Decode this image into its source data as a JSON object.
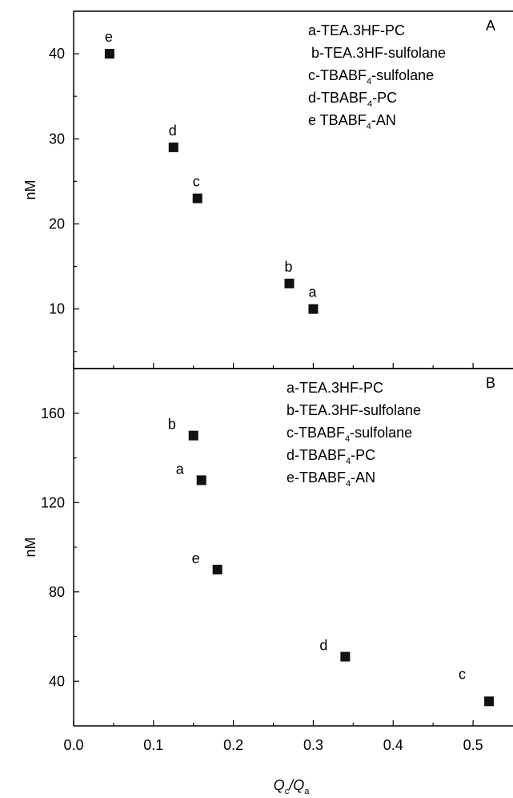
{
  "chart_data": [
    {
      "panel_label": "A",
      "type": "scatter",
      "ylabel": "nM",
      "xlim": [
        0.0,
        0.55
      ],
      "ylim": [
        3,
        45
      ],
      "yticks": [
        10,
        20,
        30,
        40
      ],
      "legend": [
        {
          "main": "a-TEA.3HF-PC",
          "sub": "",
          "tail": ""
        },
        {
          "main": "b-TEA.3HF-sulfolane",
          "sub": "",
          "tail": ""
        },
        {
          "main": "c-TBABF",
          "sub": "4",
          "tail": "-sulfolane"
        },
        {
          "main": "d-TBABF",
          "sub": "4",
          "tail": "-PC"
        },
        {
          "main": "e TBABF",
          "sub": "4",
          "tail": "-AN"
        }
      ],
      "points": [
        {
          "label": "e",
          "x": 0.045,
          "y": 40
        },
        {
          "label": "d",
          "x": 0.125,
          "y": 29
        },
        {
          "label": "c",
          "x": 0.155,
          "y": 23
        },
        {
          "label": "b",
          "x": 0.27,
          "y": 13
        },
        {
          "label": "a",
          "x": 0.3,
          "y": 10
        }
      ]
    },
    {
      "panel_label": "B",
      "type": "scatter",
      "ylabel": "nM",
      "xlabel_main": "Q",
      "xlabel_sub1": "c",
      "xlabel_mid": "/Q",
      "xlabel_sub2": "a",
      "xlim": [
        0.0,
        0.55
      ],
      "ylim": [
        20,
        180
      ],
      "xticks": [
        "0.0",
        "0.1",
        "0.2",
        "0.3",
        "0.4",
        "0.5"
      ],
      "yticks": [
        40,
        80,
        120,
        160
      ],
      "legend": [
        {
          "main": "a-TEA.3HF-PC",
          "sub": "",
          "tail": ""
        },
        {
          "main": "b-TEA.3HF-sulfolane",
          "sub": "",
          "tail": ""
        },
        {
          "main": "c-TBABF",
          "sub": "4",
          "tail": "-sulfolane"
        },
        {
          "main": "d-TBABF",
          "sub": "4",
          "tail": "-PC"
        },
        {
          "main": "e-TBABF",
          "sub": "4",
          "tail": "-AN"
        }
      ],
      "points": [
        {
          "label": "b",
          "x": 0.15,
          "y": 150
        },
        {
          "label": "a",
          "x": 0.16,
          "y": 130
        },
        {
          "label": "e",
          "x": 0.18,
          "y": 90
        },
        {
          "label": "d",
          "x": 0.34,
          "y": 51
        },
        {
          "label": "c",
          "x": 0.52,
          "y": 31
        }
      ]
    }
  ]
}
